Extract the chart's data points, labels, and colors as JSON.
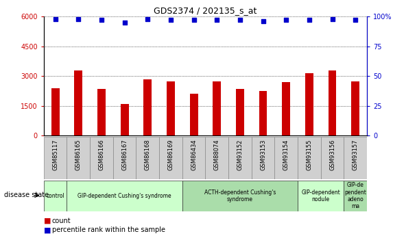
{
  "title": "GDS2374 / 202135_s_at",
  "samples": [
    "GSM85117",
    "GSM86165",
    "GSM86166",
    "GSM86167",
    "GSM86168",
    "GSM86169",
    "GSM86434",
    "GSM88074",
    "GSM93152",
    "GSM93153",
    "GSM93154",
    "GSM93155",
    "GSM93156",
    "GSM93157"
  ],
  "counts": [
    2400,
    3300,
    2350,
    1600,
    2850,
    2750,
    2100,
    2750,
    2350,
    2250,
    2700,
    3150,
    3300,
    2750
  ],
  "percentiles": [
    98,
    98,
    97,
    95,
    98,
    97,
    97,
    97,
    97,
    96,
    97,
    97,
    98,
    97
  ],
  "disease_groups": [
    {
      "label": "control",
      "start": 0,
      "end": 1,
      "color": "#ccffcc"
    },
    {
      "label": "GIP-dependent Cushing's syndrome",
      "start": 1,
      "end": 6,
      "color": "#ccffcc"
    },
    {
      "label": "ACTH-dependent Cushing's\nsyndrome",
      "start": 6,
      "end": 11,
      "color": "#aaddaa"
    },
    {
      "label": "GIP-dependent\nnodule",
      "start": 11,
      "end": 13,
      "color": "#ccffcc"
    },
    {
      "label": "GIP-de\npendent\nadeno\nma",
      "start": 13,
      "end": 14,
      "color": "#aaddaa"
    }
  ],
  "bar_color": "#cc0000",
  "dot_color": "#0000cc",
  "ylim_left": [
    0,
    6000
  ],
  "ylim_right": [
    0,
    100
  ],
  "yticks_left": [
    0,
    1500,
    3000,
    4500,
    6000
  ],
  "yticks_right": [
    0,
    25,
    50,
    75,
    100
  ],
  "bar_width": 0.35,
  "cell_bg": "#d0d0d0",
  "plot_bg": "#ffffff"
}
